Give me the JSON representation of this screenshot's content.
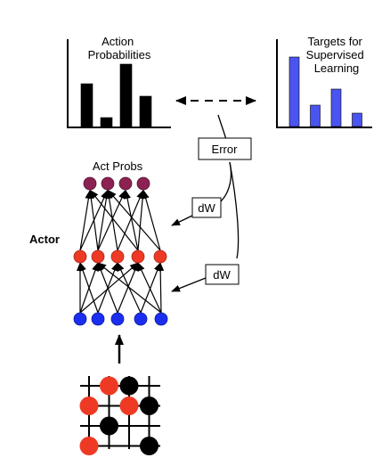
{
  "labels": {
    "action_probabilities": [
      "Action",
      "Probabilities"
    ],
    "targets": [
      "Targets for",
      "Supervised",
      "Learning"
    ],
    "error": "Error",
    "dw_upper": "dW",
    "dw_lower": "dW",
    "act_probs": "Act Probs",
    "actor": "Actor"
  },
  "colors": {
    "output_neuron": "#8b2252",
    "hidden_neuron": "#ee3a24",
    "input_neuron": "#1b2ef0",
    "target_bar": "#4a55f0",
    "prob_bar": "#000000",
    "board_red": "#ee3a24",
    "board_black": "#000000"
  },
  "action_probabilities_chart": {
    "values": [
      0.48,
      0.1,
      0.7,
      0.34
    ]
  },
  "targets_chart": {
    "values": [
      0.78,
      0.24,
      0.42,
      0.15
    ]
  },
  "network": {
    "output_count": 4,
    "hidden_count": 5,
    "input_count": 5
  },
  "board": {
    "stones": [
      {
        "row": 0,
        "col": 1,
        "color": "red"
      },
      {
        "row": 0,
        "col": 2,
        "color": "black"
      },
      {
        "row": 1,
        "col": 0,
        "color": "red"
      },
      {
        "row": 1,
        "col": 2,
        "color": "red"
      },
      {
        "row": 1,
        "col": 3,
        "color": "black"
      },
      {
        "row": 2,
        "col": 1,
        "color": "black"
      },
      {
        "row": 3,
        "col": 0,
        "color": "red"
      },
      {
        "row": 3,
        "col": 3,
        "color": "black"
      }
    ]
  }
}
